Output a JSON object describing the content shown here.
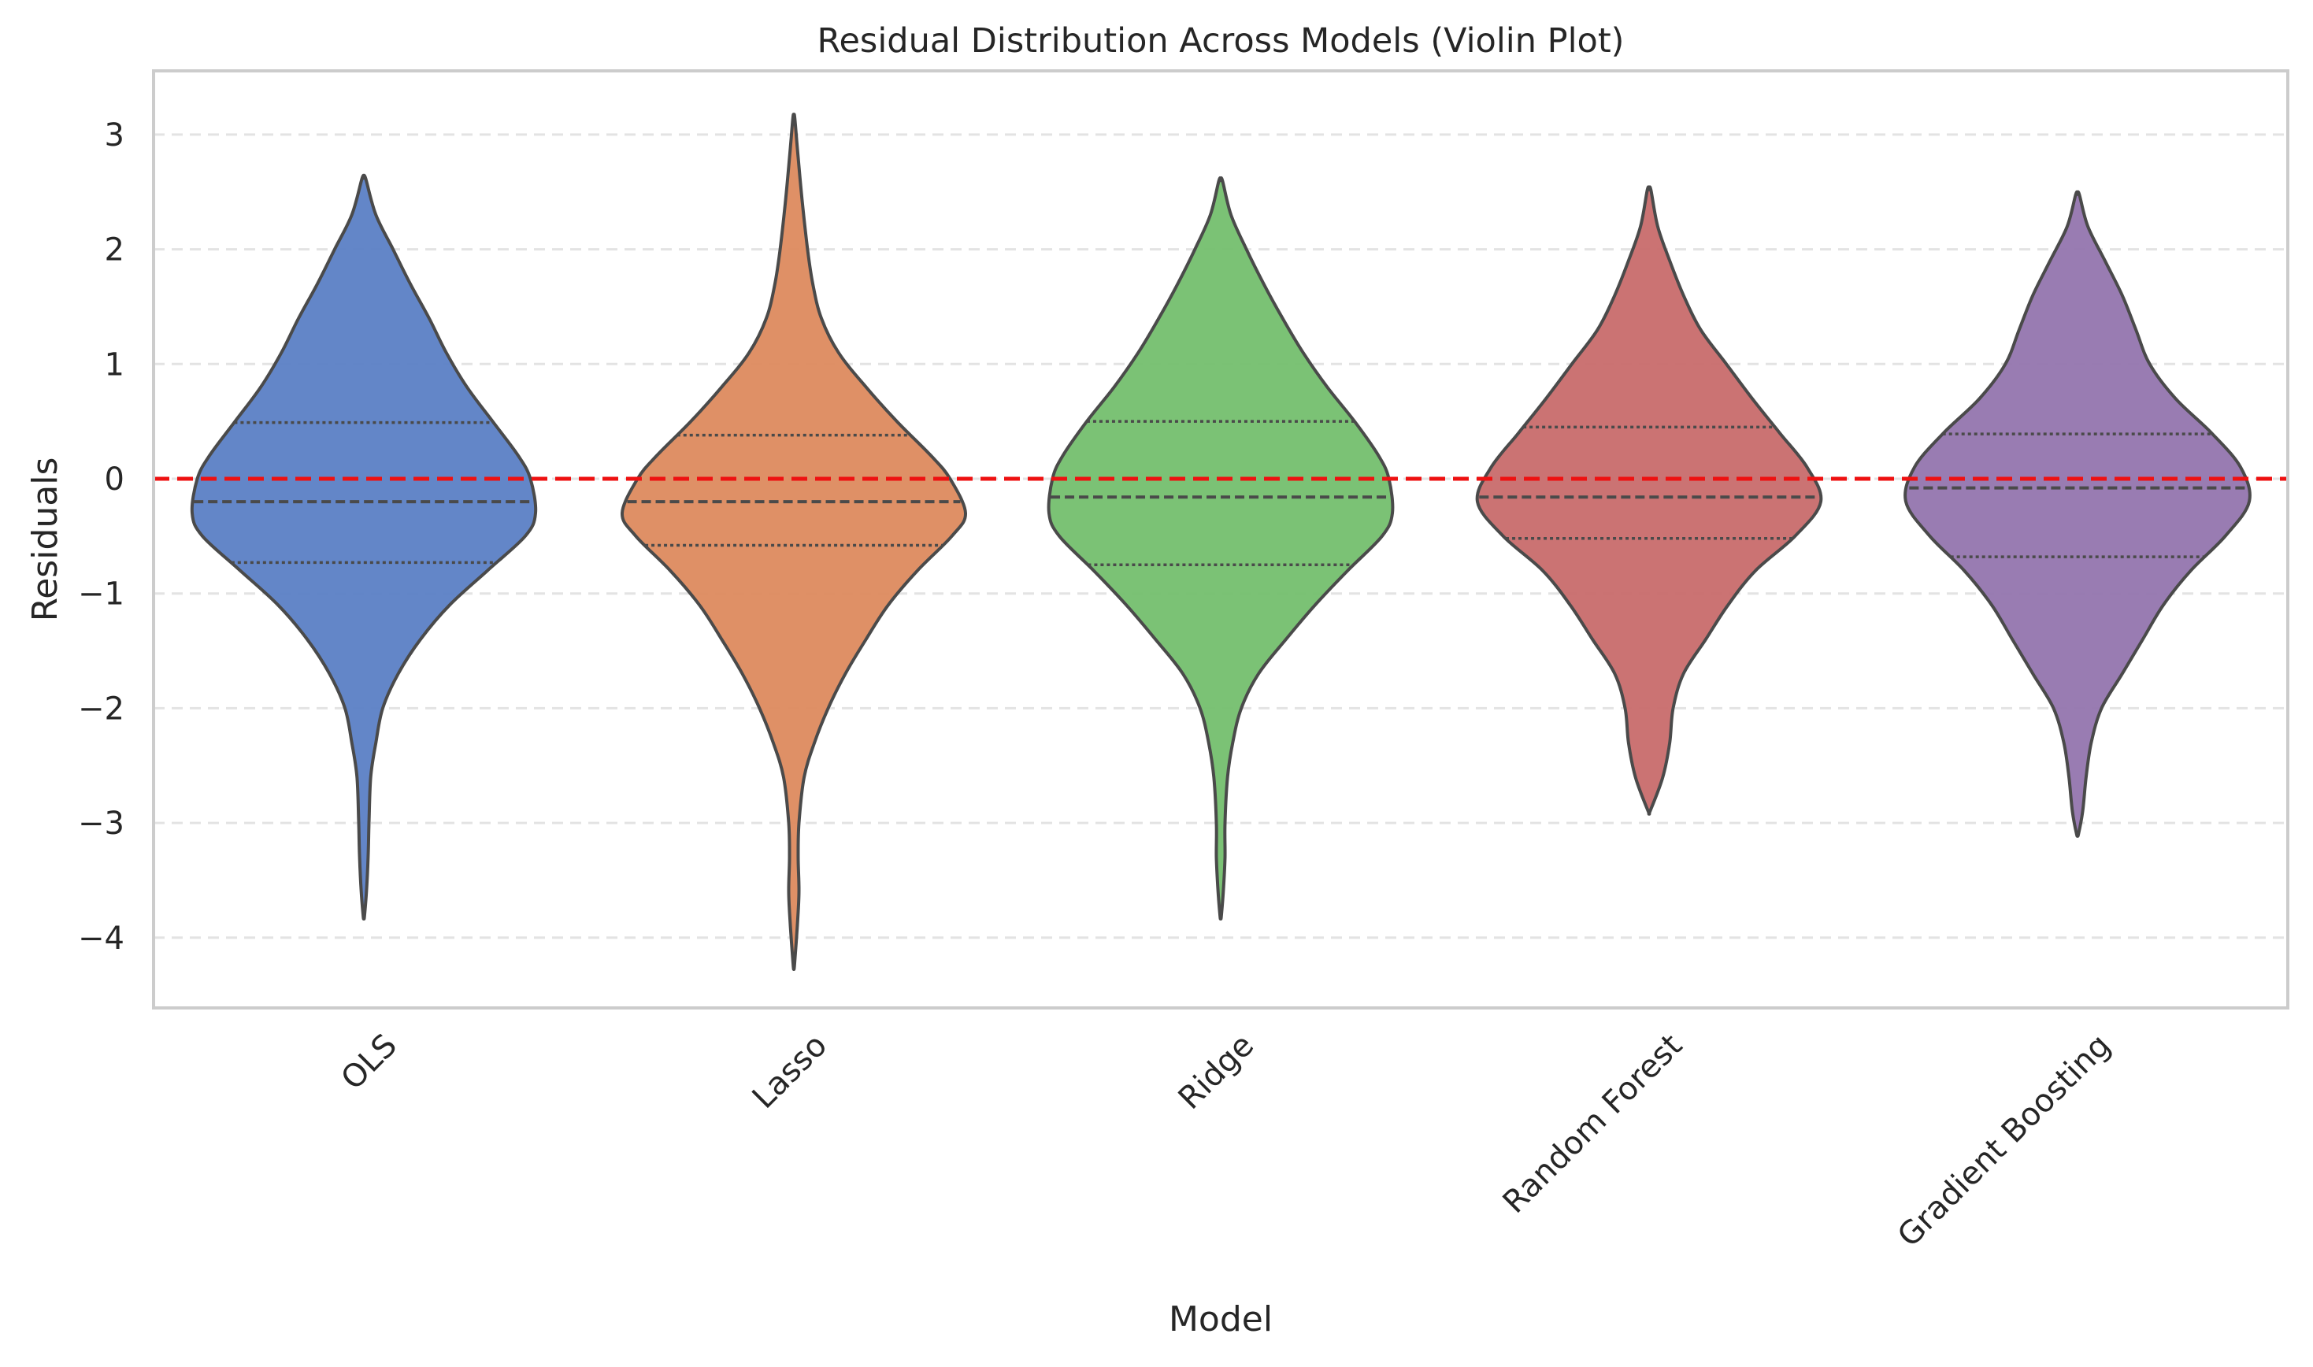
{
  "chart_data": {
    "type": "violin",
    "title": "Residual Distribution Across Models (Violin Plot)",
    "xlabel": "Model",
    "ylabel": "Residuals",
    "ylim": [
      -4.6,
      3.55
    ],
    "yticks": [
      3,
      2,
      1,
      0,
      -1,
      -2,
      -3,
      -4
    ],
    "ytick_labels": [
      "3",
      "2",
      "1",
      "0",
      "−1",
      "−2",
      "−3",
      "−4"
    ],
    "grid": "horizontal dashed",
    "x_tick_rotation_deg": 45,
    "reference_line": {
      "y": 0,
      "color": "#ee1111",
      "style": "dashed"
    },
    "categories": [
      "OLS",
      "Lasso",
      "Ridge",
      "Random Forest",
      "Gradient Boosting"
    ],
    "violins": [
      {
        "name": "OLS",
        "color": "#5b7fc5",
        "min": -3.82,
        "max": 2.62,
        "q1": -0.73,
        "median": -0.2,
        "q3": 0.49,
        "density": [
          [
            2.62,
            0.01
          ],
          [
            2.3,
            0.07
          ],
          [
            2.0,
            0.17
          ],
          [
            1.7,
            0.27
          ],
          [
            1.4,
            0.38
          ],
          [
            1.1,
            0.48
          ],
          [
            0.8,
            0.6
          ],
          [
            0.5,
            0.75
          ],
          [
            0.2,
            0.9
          ],
          [
            0.0,
            0.97
          ],
          [
            -0.3,
            1.0
          ],
          [
            -0.5,
            0.94
          ],
          [
            -0.8,
            0.72
          ],
          [
            -1.1,
            0.5
          ],
          [
            -1.4,
            0.33
          ],
          [
            -1.7,
            0.2
          ],
          [
            -2.0,
            0.11
          ],
          [
            -2.3,
            0.07
          ],
          [
            -2.6,
            0.04
          ],
          [
            -3.0,
            0.03
          ],
          [
            -3.3,
            0.025
          ],
          [
            -3.6,
            0.015
          ],
          [
            -3.82,
            0.003
          ]
        ]
      },
      {
        "name": "Lasso",
        "color": "#dd8a5e",
        "min": -4.25,
        "max": 3.15,
        "q1": -0.58,
        "median": -0.2,
        "q3": 0.38,
        "density": [
          [
            3.15,
            0.005
          ],
          [
            2.8,
            0.025
          ],
          [
            2.4,
            0.05
          ],
          [
            2.0,
            0.08
          ],
          [
            1.7,
            0.11
          ],
          [
            1.4,
            0.16
          ],
          [
            1.1,
            0.26
          ],
          [
            0.8,
            0.42
          ],
          [
            0.5,
            0.6
          ],
          [
            0.2,
            0.8
          ],
          [
            0.0,
            0.91
          ],
          [
            -0.3,
            1.0
          ],
          [
            -0.5,
            0.92
          ],
          [
            -0.8,
            0.72
          ],
          [
            -1.1,
            0.55
          ],
          [
            -1.4,
            0.42
          ],
          [
            -1.7,
            0.3
          ],
          [
            -2.0,
            0.2
          ],
          [
            -2.3,
            0.12
          ],
          [
            -2.6,
            0.06
          ],
          [
            -3.0,
            0.03
          ],
          [
            -3.3,
            0.025
          ],
          [
            -3.6,
            0.03
          ],
          [
            -3.9,
            0.02
          ],
          [
            -4.25,
            0.003
          ]
        ]
      },
      {
        "name": "Ridge",
        "color": "#74bf6e",
        "min": -3.82,
        "max": 2.6,
        "q1": -0.75,
        "median": -0.16,
        "q3": 0.5,
        "density": [
          [
            2.6,
            0.01
          ],
          [
            2.3,
            0.06
          ],
          [
            2.0,
            0.15
          ],
          [
            1.7,
            0.25
          ],
          [
            1.4,
            0.36
          ],
          [
            1.1,
            0.48
          ],
          [
            0.8,
            0.62
          ],
          [
            0.5,
            0.78
          ],
          [
            0.2,
            0.92
          ],
          [
            0.0,
            0.98
          ],
          [
            -0.3,
            1.0
          ],
          [
            -0.5,
            0.94
          ],
          [
            -0.8,
            0.74
          ],
          [
            -1.1,
            0.55
          ],
          [
            -1.4,
            0.38
          ],
          [
            -1.7,
            0.22
          ],
          [
            -2.0,
            0.12
          ],
          [
            -2.3,
            0.07
          ],
          [
            -2.6,
            0.04
          ],
          [
            -3.0,
            0.025
          ],
          [
            -3.3,
            0.025
          ],
          [
            -3.6,
            0.015
          ],
          [
            -3.82,
            0.003
          ]
        ]
      },
      {
        "name": "Random Forest",
        "color": "#c86c6c",
        "min": -2.9,
        "max": 2.52,
        "q1": -0.52,
        "median": -0.16,
        "q3": 0.45,
        "density": [
          [
            2.52,
            0.01
          ],
          [
            2.2,
            0.05
          ],
          [
            1.9,
            0.12
          ],
          [
            1.6,
            0.2
          ],
          [
            1.3,
            0.3
          ],
          [
            1.0,
            0.45
          ],
          [
            0.7,
            0.6
          ],
          [
            0.4,
            0.76
          ],
          [
            0.1,
            0.92
          ],
          [
            -0.2,
            1.0
          ],
          [
            -0.5,
            0.85
          ],
          [
            -0.8,
            0.62
          ],
          [
            -1.1,
            0.46
          ],
          [
            -1.4,
            0.33
          ],
          [
            -1.7,
            0.2
          ],
          [
            -2.0,
            0.14
          ],
          [
            -2.3,
            0.12
          ],
          [
            -2.6,
            0.08
          ],
          [
            -2.9,
            0.005
          ]
        ]
      },
      {
        "name": "Gradient Boosting",
        "color": "#9375ae",
        "min": -3.1,
        "max": 2.48,
        "q1": -0.68,
        "median": -0.08,
        "q3": 0.39,
        "density": [
          [
            2.48,
            0.01
          ],
          [
            2.2,
            0.06
          ],
          [
            1.9,
            0.16
          ],
          [
            1.6,
            0.26
          ],
          [
            1.3,
            0.34
          ],
          [
            1.0,
            0.42
          ],
          [
            0.7,
            0.57
          ],
          [
            0.4,
            0.78
          ],
          [
            0.1,
            0.95
          ],
          [
            -0.2,
            1.0
          ],
          [
            -0.5,
            0.86
          ],
          [
            -0.8,
            0.66
          ],
          [
            -1.1,
            0.5
          ],
          [
            -1.4,
            0.38
          ],
          [
            -1.7,
            0.26
          ],
          [
            -2.0,
            0.14
          ],
          [
            -2.3,
            0.08
          ],
          [
            -2.6,
            0.05
          ],
          [
            -2.9,
            0.03
          ],
          [
            -3.1,
            0.005
          ]
        ]
      }
    ]
  }
}
